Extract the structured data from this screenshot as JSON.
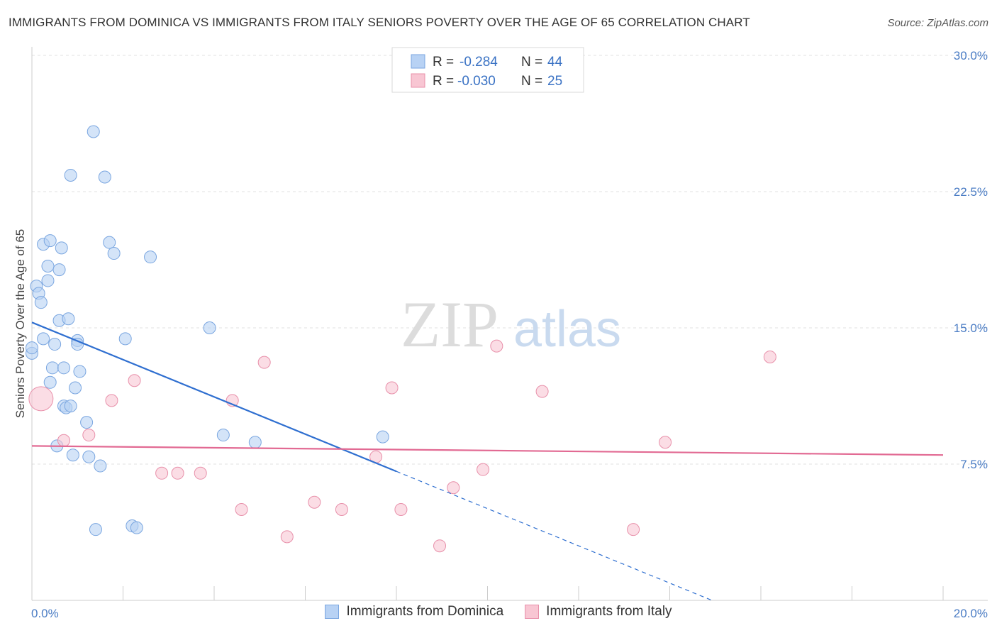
{
  "title": "IMMIGRANTS FROM DOMINICA VS IMMIGRANTS FROM ITALY SENIORS POVERTY OVER THE AGE OF 65 CORRELATION CHART",
  "source": "Source: ZipAtlas.com",
  "watermark": {
    "zip": "ZIP",
    "atlas": "atlas"
  },
  "colors": {
    "blue_fill": "#b8d2f4",
    "blue_stroke": "#7aa6e0",
    "blue_line": "#2f6fd0",
    "pink_fill": "#f8c6d3",
    "pink_stroke": "#e890aa",
    "pink_line": "#e26a93"
  },
  "legend": {
    "rows": [
      {
        "r_label": "R =",
        "r_value": "-0.284",
        "n_label": "N =",
        "n_value": "44"
      },
      {
        "r_label": "R =",
        "r_value": "-0.030",
        "n_label": "N =",
        "n_value": "25"
      }
    ]
  },
  "bottom_legend": {
    "dominica": "Immigrants from Dominica",
    "italy": "Immigrants from Italy"
  },
  "chart_data": {
    "type": "scatter",
    "title": "IMMIGRANTS FROM DOMINICA VS IMMIGRANTS FROM ITALY SENIORS POVERTY OVER THE AGE OF 65 CORRELATION CHART",
    "xlabel": "",
    "ylabel": "Seniors Poverty Over the Age of 65",
    "xlim": [
      0,
      20
    ],
    "ylim": [
      0,
      30
    ],
    "x_tick_labels": [
      "0.0%",
      "20.0%"
    ],
    "y_ticks": [
      7.5,
      15.0,
      22.5,
      30.0
    ],
    "y_tick_labels": [
      "7.5%",
      "15.0%",
      "22.5%",
      "30.0%"
    ],
    "series": [
      {
        "name": "Immigrants from Dominica",
        "r": -0.284,
        "n": 44,
        "trend": {
          "x_start": 0.0,
          "y_start": 15.3,
          "x_end": 8.0,
          "y_end": 7.1,
          "dashed_to_x": 14.9
        },
        "points": [
          [
            0.0,
            13.6
          ],
          [
            0.0,
            13.9
          ],
          [
            0.1,
            17.3
          ],
          [
            0.15,
            16.9
          ],
          [
            0.2,
            16.4
          ],
          [
            0.25,
            19.6
          ],
          [
            0.25,
            14.4
          ],
          [
            0.35,
            18.4
          ],
          [
            0.35,
            17.6
          ],
          [
            0.4,
            19.8
          ],
          [
            0.4,
            12.0
          ],
          [
            0.45,
            12.8
          ],
          [
            0.5,
            14.1
          ],
          [
            0.55,
            8.5
          ],
          [
            0.6,
            18.2
          ],
          [
            0.6,
            15.4
          ],
          [
            0.65,
            19.4
          ],
          [
            0.7,
            12.8
          ],
          [
            0.7,
            10.7
          ],
          [
            0.75,
            10.6
          ],
          [
            0.8,
            15.5
          ],
          [
            0.85,
            10.7
          ],
          [
            0.85,
            23.4
          ],
          [
            0.9,
            8.0
          ],
          [
            0.95,
            11.7
          ],
          [
            1.0,
            14.3
          ],
          [
            1.0,
            14.1
          ],
          [
            1.05,
            12.6
          ],
          [
            1.2,
            9.8
          ],
          [
            1.25,
            7.9
          ],
          [
            1.35,
            25.8
          ],
          [
            1.4,
            3.9
          ],
          [
            1.5,
            7.4
          ],
          [
            1.6,
            23.3
          ],
          [
            1.7,
            19.7
          ],
          [
            1.8,
            19.1
          ],
          [
            2.05,
            14.4
          ],
          [
            2.2,
            4.1
          ],
          [
            2.3,
            4.0
          ],
          [
            2.6,
            18.9
          ],
          [
            3.9,
            15.0
          ],
          [
            4.2,
            9.1
          ],
          [
            4.9,
            8.7
          ],
          [
            7.7,
            9.0
          ]
        ]
      },
      {
        "name": "Immigrants from Italy",
        "r": -0.03,
        "n": 25,
        "trend": {
          "x_start": 0.0,
          "y_start": 8.5,
          "x_end": 20.0,
          "y_end": 8.0
        },
        "points": [
          [
            0.2,
            11.1
          ],
          [
            0.7,
            8.8
          ],
          [
            1.25,
            9.1
          ],
          [
            1.75,
            11.0
          ],
          [
            2.25,
            12.1
          ],
          [
            2.85,
            7.0
          ],
          [
            3.2,
            7.0
          ],
          [
            3.7,
            7.0
          ],
          [
            4.4,
            11.0
          ],
          [
            4.6,
            5.0
          ],
          [
            5.1,
            13.1
          ],
          [
            5.6,
            3.5
          ],
          [
            6.2,
            5.4
          ],
          [
            6.8,
            5.0
          ],
          [
            7.55,
            7.9
          ],
          [
            7.9,
            11.7
          ],
          [
            8.1,
            5.0
          ],
          [
            8.95,
            3.0
          ],
          [
            9.25,
            6.2
          ],
          [
            9.9,
            7.2
          ],
          [
            10.2,
            14.0
          ],
          [
            11.2,
            11.5
          ],
          [
            13.2,
            3.9
          ],
          [
            13.9,
            8.7
          ],
          [
            16.2,
            13.4
          ]
        ]
      }
    ]
  }
}
